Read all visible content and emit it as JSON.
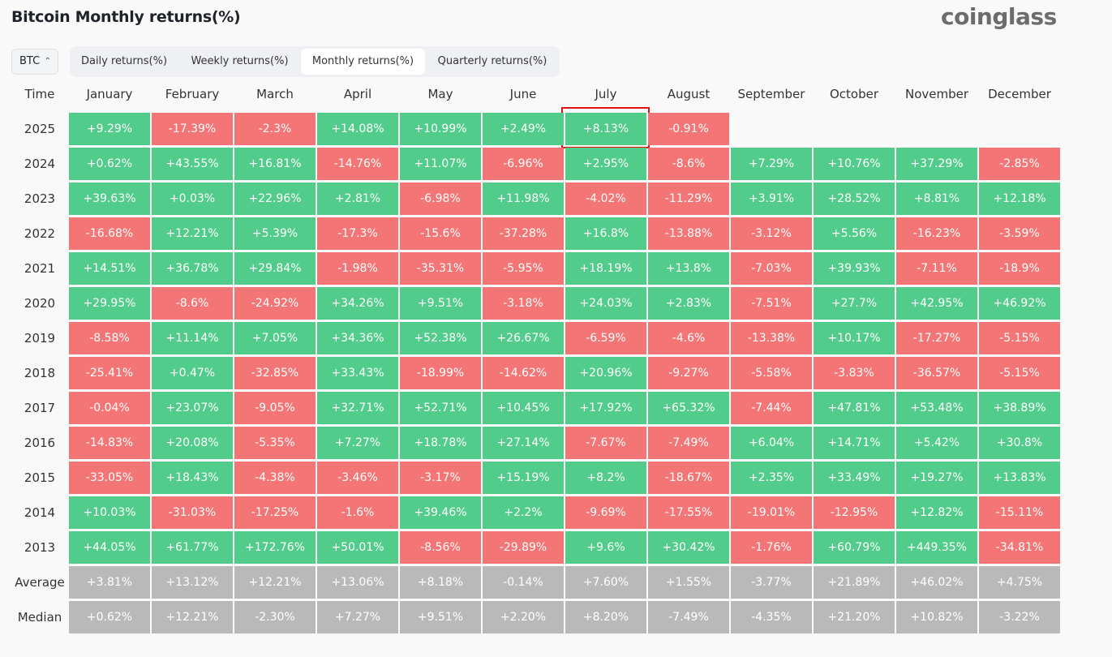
{
  "header": {
    "title": "Bitcoin Monthly returns(%)",
    "logo": "coinglass",
    "asset": "BTC",
    "tabs": [
      "Daily returns(%)",
      "Weekly returns(%)",
      "Monthly returns(%)",
      "Quarterly returns(%)"
    ],
    "active_tab": 2
  },
  "colors": {
    "positive": "#52cc8a",
    "negative": "#f47575",
    "summary": "#b9b9b9"
  },
  "table": {
    "columns": [
      "Time",
      "January",
      "February",
      "March",
      "April",
      "May",
      "June",
      "July",
      "August",
      "September",
      "October",
      "November",
      "December"
    ],
    "rows": [
      {
        "label": "2025",
        "values": [
          "+9.29%",
          "-17.39%",
          "-2.3%",
          "+14.08%",
          "+10.99%",
          "+2.49%",
          "+8.13%",
          "-0.91%"
        ]
      },
      {
        "label": "2024",
        "values": [
          "+0.62%",
          "+43.55%",
          "+16.81%",
          "-14.76%",
          "+11.07%",
          "-6.96%",
          "+2.95%",
          "-8.6%",
          "+7.29%",
          "+10.76%",
          "+37.29%",
          "-2.85%"
        ]
      },
      {
        "label": "2023",
        "values": [
          "+39.63%",
          "+0.03%",
          "+22.96%",
          "+2.81%",
          "-6.98%",
          "+11.98%",
          "-4.02%",
          "-11.29%",
          "+3.91%",
          "+28.52%",
          "+8.81%",
          "+12.18%"
        ]
      },
      {
        "label": "2022",
        "values": [
          "-16.68%",
          "+12.21%",
          "+5.39%",
          "-17.3%",
          "-15.6%",
          "-37.28%",
          "+16.8%",
          "-13.88%",
          "-3.12%",
          "+5.56%",
          "-16.23%",
          "-3.59%"
        ]
      },
      {
        "label": "2021",
        "values": [
          "+14.51%",
          "+36.78%",
          "+29.84%",
          "-1.98%",
          "-35.31%",
          "-5.95%",
          "+18.19%",
          "+13.8%",
          "-7.03%",
          "+39.93%",
          "-7.11%",
          "-18.9%"
        ]
      },
      {
        "label": "2020",
        "values": [
          "+29.95%",
          "-8.6%",
          "-24.92%",
          "+34.26%",
          "+9.51%",
          "-3.18%",
          "+24.03%",
          "+2.83%",
          "-7.51%",
          "+27.7%",
          "+42.95%",
          "+46.92%"
        ]
      },
      {
        "label": "2019",
        "values": [
          "-8.58%",
          "+11.14%",
          "+7.05%",
          "+34.36%",
          "+52.38%",
          "+26.67%",
          "-6.59%",
          "-4.6%",
          "-13.38%",
          "+10.17%",
          "-17.27%",
          "-5.15%"
        ]
      },
      {
        "label": "2018",
        "values": [
          "-25.41%",
          "+0.47%",
          "-32.85%",
          "+33.43%",
          "-18.99%",
          "-14.62%",
          "+20.96%",
          "-9.27%",
          "-5.58%",
          "-3.83%",
          "-36.57%",
          "-5.15%"
        ]
      },
      {
        "label": "2017",
        "values": [
          "-0.04%",
          "+23.07%",
          "-9.05%",
          "+32.71%",
          "+52.71%",
          "+10.45%",
          "+17.92%",
          "+65.32%",
          "-7.44%",
          "+47.81%",
          "+53.48%",
          "+38.89%"
        ]
      },
      {
        "label": "2016",
        "values": [
          "-14.83%",
          "+20.08%",
          "-5.35%",
          "+7.27%",
          "+18.78%",
          "+27.14%",
          "-7.67%",
          "-7.49%",
          "+6.04%",
          "+14.71%",
          "+5.42%",
          "+30.8%"
        ]
      },
      {
        "label": "2015",
        "values": [
          "-33.05%",
          "+18.43%",
          "-4.38%",
          "-3.46%",
          "-3.17%",
          "+15.19%",
          "+8.2%",
          "-18.67%",
          "+2.35%",
          "+33.49%",
          "+19.27%",
          "+13.83%"
        ]
      },
      {
        "label": "2014",
        "values": [
          "+10.03%",
          "-31.03%",
          "-17.25%",
          "-1.6%",
          "+39.46%",
          "+2.2%",
          "-9.69%",
          "-17.55%",
          "-19.01%",
          "-12.95%",
          "+12.82%",
          "-15.11%"
        ]
      },
      {
        "label": "2013",
        "values": [
          "+44.05%",
          "+61.77%",
          "+172.76%",
          "+50.01%",
          "-8.56%",
          "-29.89%",
          "+9.6%",
          "+30.42%",
          "-1.76%",
          "+60.79%",
          "+449.35%",
          "-34.81%"
        ]
      }
    ],
    "summary_rows": [
      {
        "label": "Average",
        "values": [
          "+3.81%",
          "+13.12%",
          "+12.21%",
          "+13.06%",
          "+8.18%",
          "-0.14%",
          "+7.60%",
          "+1.55%",
          "-3.77%",
          "+21.89%",
          "+46.02%",
          "+4.75%"
        ]
      },
      {
        "label": "Median",
        "values": [
          "+0.62%",
          "+12.21%",
          "-2.30%",
          "+7.27%",
          "+9.51%",
          "+2.20%",
          "+8.20%",
          "-7.49%",
          "-4.35%",
          "+21.20%",
          "+10.82%",
          "-3.22%"
        ]
      }
    ]
  }
}
